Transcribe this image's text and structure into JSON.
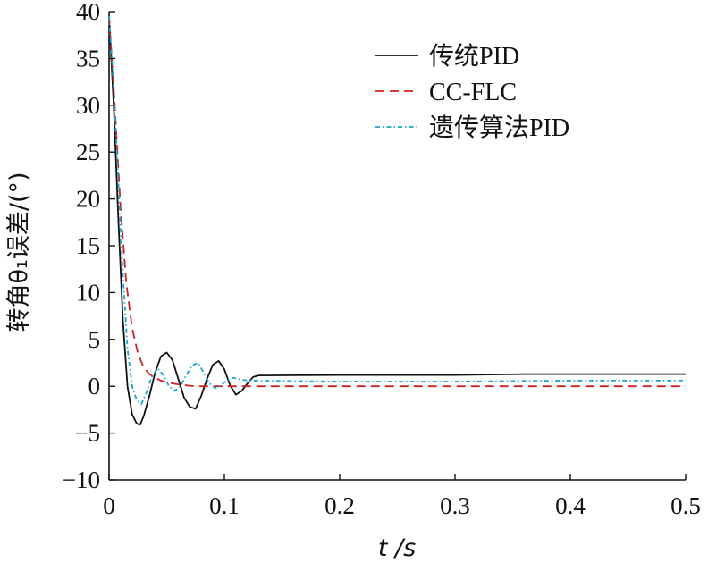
{
  "chart_data": {
    "type": "line",
    "title": "",
    "xlabel": "t /s",
    "ylabel": "转角θ₁误差/(°)",
    "xlim": [
      0,
      0.5
    ],
    "ylim": [
      -10,
      40
    ],
    "xticks": [
      "0",
      "0.1",
      "0.2",
      "0.3",
      "0.4",
      "0.5"
    ],
    "yticks": [
      "−10",
      "−5",
      "0",
      "5",
      "10",
      "15",
      "20",
      "25",
      "30",
      "35",
      "40"
    ],
    "grid": false,
    "legend_position": "top-right",
    "series": [
      {
        "name": "传统PID",
        "color": "#111111",
        "dash": "solid",
        "x": [
          0,
          0.004,
          0.008,
          0.012,
          0.016,
          0.02,
          0.024,
          0.027,
          0.03,
          0.035,
          0.04,
          0.045,
          0.05,
          0.055,
          0.06,
          0.065,
          0.07,
          0.075,
          0.08,
          0.085,
          0.09,
          0.095,
          0.1,
          0.105,
          0.11,
          0.115,
          0.12,
          0.125,
          0.13,
          0.2,
          0.3,
          0.36,
          0.4,
          0.5
        ],
        "y": [
          39.5,
          30,
          18,
          7,
          0,
          -3,
          -4,
          -4.1,
          -3.2,
          -1,
          1.5,
          3.2,
          3.6,
          2.8,
          0.8,
          -1.2,
          -2.2,
          -2.4,
          -1,
          0.8,
          2.3,
          2.7,
          1.8,
          0.1,
          -0.9,
          -0.5,
          0.3,
          1,
          1.15,
          1.2,
          1.2,
          1.3,
          1.3,
          1.3
        ]
      },
      {
        "name": "CC-FLC",
        "color": "#cc2222",
        "dash": "10,6",
        "x": [
          0,
          0.005,
          0.01,
          0.015,
          0.02,
          0.025,
          0.03,
          0.035,
          0.04,
          0.045,
          0.05,
          0.06,
          0.07,
          0.08,
          0.09,
          0.1,
          0.2,
          0.3,
          0.4,
          0.5
        ],
        "y": [
          39.5,
          30,
          19,
          11,
          6.2,
          3.5,
          2,
          1.3,
          0.9,
          0.6,
          0.4,
          0.2,
          0.05,
          0,
          0,
          0,
          0,
          0,
          0,
          0
        ]
      },
      {
        "name": "遗传算法PID",
        "color": "#1aa3cc",
        "dash": "5,3,1.5,3",
        "x": [
          0,
          0.004,
          0.008,
          0.012,
          0.016,
          0.02,
          0.024,
          0.028,
          0.032,
          0.037,
          0.042,
          0.047,
          0.052,
          0.057,
          0.062,
          0.067,
          0.072,
          0.077,
          0.082,
          0.087,
          0.092,
          0.097,
          0.102,
          0.108,
          0.115,
          0.12,
          0.2,
          0.3,
          0.4,
          0.5
        ],
        "y": [
          39.5,
          32,
          22,
          12,
          4,
          0,
          -1.5,
          -1.9,
          -0.8,
          1,
          1.9,
          1.2,
          0,
          -0.5,
          0,
          1.2,
          2.2,
          2.5,
          1.5,
          0.3,
          -0.2,
          0.1,
          0.6,
          0.9,
          0.7,
          0.6,
          0.5,
          0.5,
          0.6,
          0.6
        ]
      }
    ]
  }
}
